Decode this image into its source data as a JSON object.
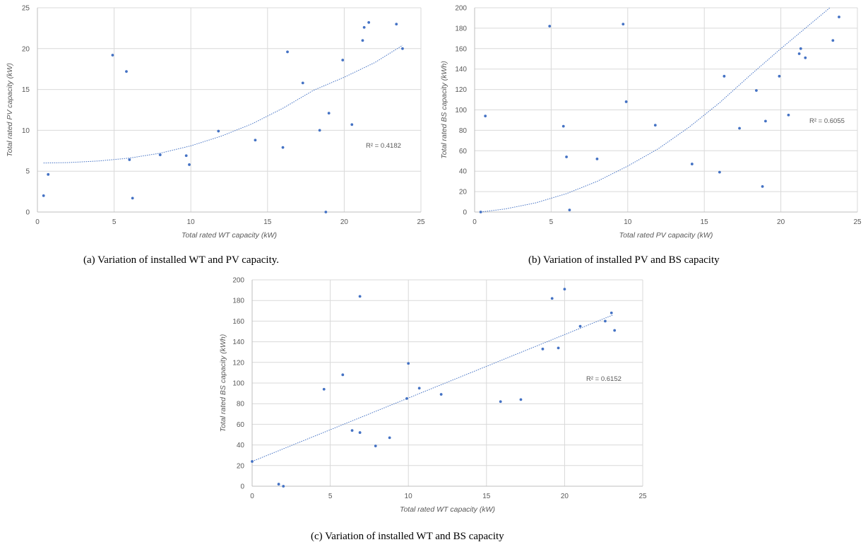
{
  "colors": {
    "point": "#4472c4",
    "trend": "#4472c4",
    "grid": "#d9d9d9",
    "text": "#595959"
  },
  "captions": [
    "(a)  Variation of installed WT and PV capacity.",
    "(b)  Variation of installed PV and BS capacity",
    "(c)  Variation of installed WT and BS capacity"
  ],
  "chart_data": [
    {
      "type": "scatter",
      "xlabel": "Total rated WT capacity (kW)",
      "ylabel": "Total rated PV capacity (kW)",
      "xlim": [
        0,
        25
      ],
      "ylim": [
        0,
        25
      ],
      "xticks": [
        0,
        5,
        10,
        15,
        20,
        25
      ],
      "yticks": [
        0,
        5,
        10,
        15,
        20,
        25
      ],
      "grid": true,
      "trendline": {
        "kind": "polynomial",
        "r2_label": "R² = 0.4182",
        "points": [
          [
            0.4,
            6.0
          ],
          [
            2,
            6.05
          ],
          [
            4,
            6.25
          ],
          [
            6,
            6.6
          ],
          [
            8,
            7.2
          ],
          [
            10,
            8.1
          ],
          [
            12,
            9.3
          ],
          [
            14,
            10.8
          ],
          [
            16,
            12.7
          ],
          [
            18,
            14.9
          ],
          [
            20,
            16.5
          ],
          [
            22,
            18.3
          ],
          [
            23.8,
            20.4
          ]
        ]
      },
      "points": [
        [
          0.4,
          2.0
        ],
        [
          0.7,
          4.6
        ],
        [
          4.9,
          19.2
        ],
        [
          5.8,
          17.2
        ],
        [
          6.0,
          6.4
        ],
        [
          6.2,
          1.7
        ],
        [
          8.0,
          7.0
        ],
        [
          9.7,
          6.9
        ],
        [
          9.9,
          5.8
        ],
        [
          11.8,
          9.9
        ],
        [
          14.2,
          8.8
        ],
        [
          16.0,
          7.9
        ],
        [
          16.3,
          19.6
        ],
        [
          17.3,
          15.8
        ],
        [
          18.4,
          10.0
        ],
        [
          18.8,
          0.0
        ],
        [
          19.0,
          12.1
        ],
        [
          19.9,
          18.6
        ],
        [
          20.5,
          10.7
        ],
        [
          21.2,
          21.0
        ],
        [
          21.3,
          22.6
        ],
        [
          21.6,
          23.2
        ],
        [
          23.4,
          23.0
        ],
        [
          23.8,
          20.0
        ]
      ]
    },
    {
      "type": "scatter",
      "xlabel": "Total rated PV capacity (kW)",
      "ylabel": "Total rated BS  capacity (kWh)",
      "xlim": [
        0,
        25
      ],
      "ylim": [
        0,
        200
      ],
      "xticks": [
        0,
        5,
        10,
        15,
        20,
        25
      ],
      "yticks": [
        0,
        20,
        40,
        60,
        80,
        100,
        120,
        140,
        160,
        180,
        200
      ],
      "grid": true,
      "trendline": {
        "kind": "polynomial",
        "r2_label": "R² = 0.6055",
        "points": [
          [
            0.4,
            0
          ],
          [
            2,
            3
          ],
          [
            4,
            9
          ],
          [
            6,
            18
          ],
          [
            8,
            30
          ],
          [
            10,
            45
          ],
          [
            12,
            62
          ],
          [
            14,
            83
          ],
          [
            16,
            107
          ],
          [
            18,
            134
          ],
          [
            20,
            160
          ],
          [
            22,
            185
          ],
          [
            23.2,
            200
          ]
        ]
      },
      "points": [
        [
          0.4,
          0
        ],
        [
          0.7,
          94
        ],
        [
          4.9,
          182
        ],
        [
          5.8,
          84
        ],
        [
          6.0,
          54
        ],
        [
          6.2,
          2
        ],
        [
          8.0,
          52
        ],
        [
          9.7,
          184
        ],
        [
          9.9,
          108
        ],
        [
          11.8,
          85
        ],
        [
          14.2,
          47
        ],
        [
          16.0,
          39
        ],
        [
          16.3,
          133
        ],
        [
          17.3,
          82
        ],
        [
          18.4,
          119
        ],
        [
          18.8,
          25
        ],
        [
          19.0,
          89
        ],
        [
          19.9,
          133
        ],
        [
          20.5,
          95
        ],
        [
          21.2,
          155
        ],
        [
          21.3,
          160
        ],
        [
          21.6,
          151
        ],
        [
          23.4,
          168
        ],
        [
          23.8,
          191
        ]
      ]
    },
    {
      "type": "scatter",
      "xlabel": "Total rated WT capacity (kW)",
      "ylabel": "Total rated BS  capacity (kWh)",
      "xlim": [
        0,
        25
      ],
      "ylim": [
        0,
        200
      ],
      "xticks": [
        0,
        5,
        10,
        15,
        20,
        25
      ],
      "yticks": [
        0,
        20,
        40,
        60,
        80,
        100,
        120,
        140,
        160,
        180,
        200
      ],
      "grid": true,
      "trendline": {
        "kind": "linear",
        "r2_label": "R² = 0.6152",
        "points": [
          [
            0,
            24
          ],
          [
            23.1,
            166
          ]
        ]
      },
      "points": [
        [
          0.0,
          24
        ],
        [
          1.7,
          2
        ],
        [
          2.0,
          0
        ],
        [
          4.6,
          94
        ],
        [
          5.8,
          108
        ],
        [
          6.4,
          54
        ],
        [
          6.9,
          184
        ],
        [
          6.9,
          52
        ],
        [
          7.9,
          39
        ],
        [
          8.8,
          47
        ],
        [
          9.9,
          85
        ],
        [
          10.0,
          119
        ],
        [
          10.7,
          95
        ],
        [
          12.1,
          89
        ],
        [
          15.9,
          82
        ],
        [
          17.2,
          84
        ],
        [
          18.6,
          133
        ],
        [
          19.2,
          182
        ],
        [
          19.6,
          134
        ],
        [
          20.0,
          191
        ],
        [
          21.0,
          155
        ],
        [
          22.6,
          160
        ],
        [
          23.0,
          168
        ],
        [
          23.2,
          151
        ]
      ]
    }
  ]
}
